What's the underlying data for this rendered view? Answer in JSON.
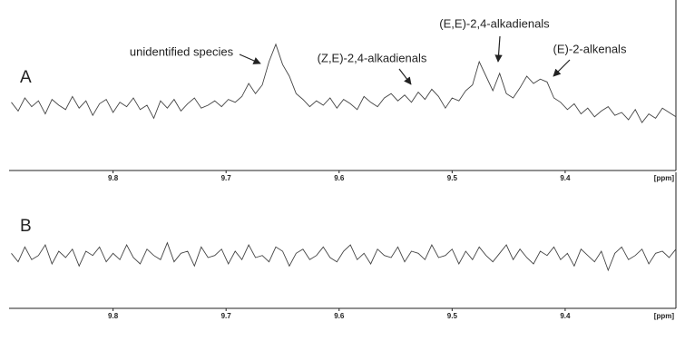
{
  "chart_data": [
    {
      "type": "line",
      "label": "A",
      "x_unit": "[ppm]",
      "annotations": [
        "unidentified species",
        "(Z,E)-2,4-alkadienals",
        "(E,E)-2,4-alkadienals",
        "(E)-2-alkenals"
      ],
      "xlim": [
        9.892,
        9.302
      ],
      "xticks": [
        9.8,
        9.7,
        9.6,
        9.5,
        9.4
      ],
      "ylim": [
        -40,
        60
      ],
      "color": "#444444",
      "x": [
        9.89,
        9.884,
        9.878,
        9.872,
        9.866,
        9.86,
        9.854,
        9.848,
        9.842,
        9.836,
        9.83,
        9.824,
        9.818,
        9.812,
        9.806,
        9.8,
        9.794,
        9.788,
        9.782,
        9.776,
        9.77,
        9.764,
        9.758,
        9.752,
        9.746,
        9.74,
        9.734,
        9.728,
        9.722,
        9.716,
        9.71,
        9.704,
        9.698,
        9.692,
        9.686,
        9.68,
        9.674,
        9.668,
        9.662,
        9.656,
        9.65,
        9.644,
        9.638,
        9.632,
        9.626,
        9.62,
        9.614,
        9.608,
        9.602,
        9.596,
        9.59,
        9.584,
        9.578,
        9.572,
        9.566,
        9.56,
        9.554,
        9.548,
        9.542,
        9.536,
        9.53,
        9.524,
        9.518,
        9.512,
        9.506,
        9.5,
        9.494,
        9.488,
        9.482,
        9.476,
        9.47,
        9.464,
        9.458,
        9.452,
        9.446,
        9.44,
        9.434,
        9.428,
        9.422,
        9.416,
        9.41,
        9.404,
        9.398,
        9.392,
        9.386,
        9.38,
        9.374,
        9.368,
        9.362,
        9.356,
        9.35,
        9.344,
        9.338,
        9.332,
        9.326,
        9.32,
        9.314,
        9.308,
        9.302
      ],
      "values": [
        2,
        -4,
        5,
        -1,
        3,
        -6,
        4,
        0,
        -3,
        6,
        -2,
        3,
        -7,
        1,
        4,
        -5,
        2,
        -1,
        5,
        -3,
        0,
        -9,
        3,
        -2,
        4,
        -4,
        1,
        5,
        -2,
        0,
        3,
        -1,
        4,
        2,
        6,
        15,
        8,
        14,
        30,
        42,
        28,
        20,
        8,
        4,
        -1,
        3,
        0,
        5,
        -2,
        4,
        1,
        -3,
        6,
        2,
        -1,
        5,
        8,
        3,
        7,
        2,
        9,
        4,
        11,
        6,
        -2,
        5,
        3,
        10,
        14,
        30,
        20,
        10,
        22,
        8,
        5,
        12,
        20,
        15,
        18,
        16,
        5,
        2,
        -3,
        1,
        -6,
        -2,
        -8,
        -4,
        -1,
        -7,
        -5,
        -10,
        -3,
        -12,
        -6,
        -9,
        -2,
        -5,
        -8
      ]
    },
    {
      "type": "line",
      "label": "B",
      "x_unit": "[ppm]",
      "xlim": [
        9.892,
        9.302
      ],
      "xticks": [
        9.8,
        9.7,
        9.6,
        9.5,
        9.4
      ],
      "ylim": [
        -25,
        35
      ],
      "color": "#444444",
      "x": [
        9.89,
        9.884,
        9.878,
        9.872,
        9.866,
        9.86,
        9.854,
        9.848,
        9.842,
        9.836,
        9.83,
        9.824,
        9.818,
        9.812,
        9.806,
        9.8,
        9.794,
        9.788,
        9.782,
        9.776,
        9.77,
        9.764,
        9.758,
        9.752,
        9.746,
        9.74,
        9.734,
        9.728,
        9.722,
        9.716,
        9.71,
        9.704,
        9.698,
        9.692,
        9.686,
        9.68,
        9.674,
        9.668,
        9.662,
        9.656,
        9.65,
        9.644,
        9.638,
        9.632,
        9.626,
        9.62,
        9.614,
        9.608,
        9.602,
        9.596,
        9.59,
        9.584,
        9.578,
        9.572,
        9.566,
        9.56,
        9.554,
        9.548,
        9.542,
        9.536,
        9.53,
        9.524,
        9.518,
        9.512,
        9.506,
        9.5,
        9.494,
        9.488,
        9.482,
        9.476,
        9.47,
        9.464,
        9.458,
        9.452,
        9.446,
        9.44,
        9.434,
        9.428,
        9.422,
        9.416,
        9.41,
        9.404,
        9.398,
        9.392,
        9.386,
        9.38,
        9.374,
        9.368,
        9.362,
        9.356,
        9.35,
        9.344,
        9.338,
        9.332,
        9.326,
        9.32,
        9.314,
        9.308,
        9.302
      ],
      "values": [
        1,
        -3,
        4,
        -2,
        0,
        5,
        -4,
        2,
        -1,
        3,
        -5,
        2,
        0,
        4,
        -3,
        1,
        -2,
        5,
        -1,
        -4,
        3,
        0,
        -2,
        6,
        -3,
        1,
        2,
        -5,
        4,
        -1,
        0,
        3,
        -4,
        2,
        -2,
        5,
        -1,
        0,
        -3,
        4,
        2,
        -5,
        1,
        3,
        -2,
        0,
        4,
        -1,
        -3,
        2,
        5,
        -2,
        1,
        -4,
        3,
        0,
        -1,
        4,
        -3,
        2,
        1,
        -2,
        5,
        -1,
        0,
        3,
        -4,
        2,
        -2,
        4,
        0,
        -3,
        1,
        5,
        -2,
        3,
        -1,
        -4,
        2,
        0,
        4,
        -2,
        1,
        -5,
        3,
        0,
        -3,
        2,
        -7,
        1,
        4,
        -2,
        0,
        3,
        -4,
        1,
        2,
        -1,
        3
      ]
    }
  ]
}
